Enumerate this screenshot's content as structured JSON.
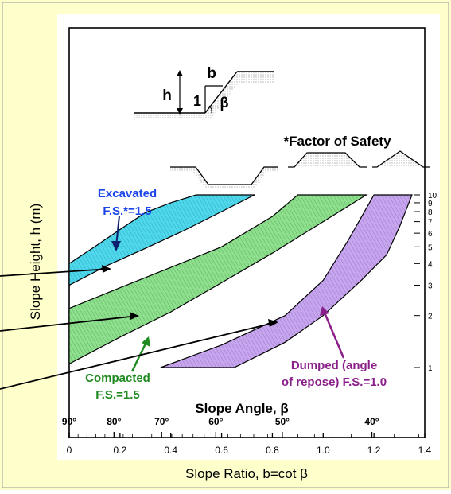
{
  "chart_data": {
    "type": "area",
    "xlabel_top": "Slope Angle, β",
    "xlabel_bottom": "Slope Ratio, b=cot β",
    "ylabel": "Slope Height, h (m)",
    "y_scale": "log",
    "ylim": [
      1,
      10
    ],
    "xlim": [
      0,
      1.4
    ],
    "x_ticks": [
      "0",
      "0.2",
      "0.4",
      "0.6",
      "0.8",
      "1.0",
      "1.2",
      "1.4"
    ],
    "angle_ticks": [
      "90°",
      "80°",
      "70°",
      "60°",
      "50°",
      "40°"
    ],
    "y_ticks": [
      "1",
      "2",
      "3",
      "4",
      "5",
      "6",
      "7",
      "8",
      "9",
      "10"
    ],
    "inset": {
      "h": "h",
      "b": "b",
      "one": "1",
      "beta": "β"
    },
    "fos_note": "*Factor of Safety",
    "series": [
      {
        "name": "Excavated F.S.*=1.5",
        "label_lines": [
          "Excavated",
          "F.S.*=1.5"
        ],
        "color": "#4fd7ec",
        "upper": [
          [
            0.0,
            4.0
          ],
          [
            0.1,
            5.0
          ],
          [
            0.2,
            6.3
          ],
          [
            0.3,
            7.9
          ],
          [
            0.4,
            9.0
          ],
          [
            0.5,
            10.0
          ]
        ],
        "lower": [
          [
            0.73,
            10.0
          ],
          [
            0.6,
            8.0
          ],
          [
            0.45,
            6.2
          ],
          [
            0.3,
            4.9
          ],
          [
            0.15,
            3.9
          ],
          [
            0.0,
            3.0
          ]
        ]
      },
      {
        "name": "Compacted F.S.=1.5",
        "label_lines": [
          "Compacted",
          "F.S.=1.5"
        ],
        "color": "#8ee08e",
        "upper": [
          [
            0.0,
            2.2
          ],
          [
            0.2,
            2.9
          ],
          [
            0.4,
            3.8
          ],
          [
            0.6,
            5.0
          ],
          [
            0.8,
            7.5
          ],
          [
            0.9,
            10.0
          ]
        ],
        "lower": [
          [
            1.17,
            10.0
          ],
          [
            1.0,
            7.0
          ],
          [
            0.8,
            4.6
          ],
          [
            0.6,
            3.1
          ],
          [
            0.4,
            2.1
          ],
          [
            0.2,
            1.5
          ],
          [
            0.0,
            1.05
          ]
        ]
      },
      {
        "name": "Dumped (angle of repose) F.S.=1.0",
        "label_lines": [
          "Dumped (angle",
          "of repose) F.S.=1.0"
        ],
        "color": "#c7a6ef",
        "upper": [
          [
            0.36,
            1.0
          ],
          [
            0.6,
            1.35
          ],
          [
            0.85,
            2.0
          ],
          [
            1.0,
            3.2
          ],
          [
            1.1,
            5.5
          ],
          [
            1.2,
            10.0
          ]
        ],
        "lower": [
          [
            1.35,
            10.0
          ],
          [
            1.3,
            6.5
          ],
          [
            1.25,
            4.5
          ],
          [
            1.15,
            3.2
          ],
          [
            1.0,
            2.0
          ],
          [
            0.85,
            1.4
          ],
          [
            0.65,
            1.0
          ]
        ]
      }
    ]
  }
}
